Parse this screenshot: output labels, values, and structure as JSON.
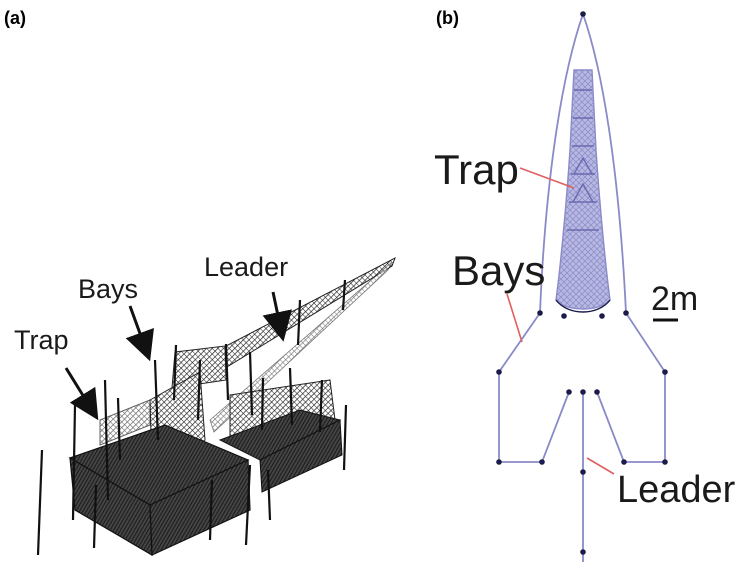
{
  "panel_a": {
    "label": "(a)",
    "labels": {
      "leader": "Leader",
      "bays": "Bays",
      "trap": "Trap"
    }
  },
  "panel_b": {
    "label": "(b)",
    "labels": {
      "trap": "Trap",
      "bays": "Bays",
      "leader": "Leader",
      "scale": "2m"
    }
  },
  "colors": {
    "outline": "#8a8ac8",
    "trap_fill": "#a9a9dc",
    "vertex": "#1c1c4a",
    "arrow_red": "#e06060",
    "sketch_ink": "#222222"
  }
}
